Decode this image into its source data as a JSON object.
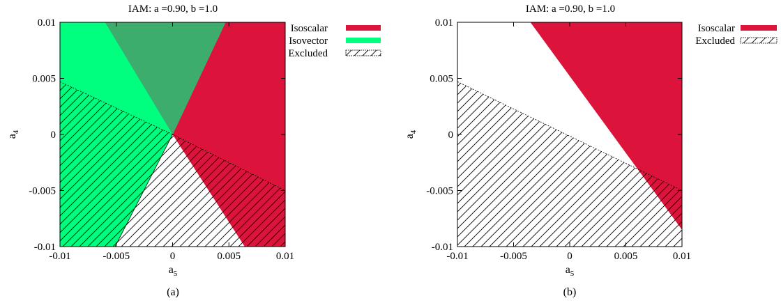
{
  "colors": {
    "isoscalar": "#dc143c",
    "isovector": "#00ff7f",
    "overlap": "#3cad6c",
    "hatch": "#000000"
  },
  "chart_data": [
    {
      "type": "area",
      "panel": "a",
      "caption": "(a)",
      "title": "IAM: a =0.90, b =1.0",
      "xlabel": "a",
      "xlabel_sub": "5",
      "ylabel": "a",
      "ylabel_sub": "4",
      "xlim": [
        -0.01,
        0.01
      ],
      "ylim": [
        -0.01,
        0.01
      ],
      "xticks": [
        "-0.01",
        "-0.005",
        "0",
        "0.005",
        "0.01"
      ],
      "yticks": [
        "-0.01",
        "-0.005",
        "0",
        "0.005",
        "0.01"
      ],
      "grid": false,
      "legend_position": "outside-right",
      "legend": [
        "Isoscalar",
        "Isovector",
        "Excluded"
      ],
      "series": [
        {
          "name": "Isoscalar",
          "color_key": "isoscalar",
          "fill": "solid",
          "polygon": [
            [
              0.0047,
              0.01
            ],
            [
              0.01,
              0.01
            ],
            [
              0.01,
              -0.01
            ],
            [
              0.0064,
              -0.01
            ],
            [
              0.0,
              0.0
            ]
          ]
        },
        {
          "name": "Isovector",
          "color_key": "isovector",
          "fill": "solid",
          "polygon": [
            [
              -0.01,
              0.01
            ],
            [
              0.0047,
              0.01
            ],
            [
              0.0,
              0.0
            ],
            [
              -0.0051,
              -0.01
            ],
            [
              -0.01,
              -0.01
            ]
          ]
        },
        {
          "color_key": "overlap",
          "fill": "solid",
          "polygon": [
            [
              -0.006,
              0.01
            ],
            [
              0.0047,
              0.01
            ],
            [
              0.0,
              0.0
            ]
          ]
        },
        {
          "name": "Excluded",
          "color_key": "hatch",
          "fill": "hatch",
          "polygon": [
            [
              -0.01,
              0.0047
            ],
            [
              0.0,
              0.0
            ],
            [
              -0.0051,
              -0.01
            ],
            [
              -0.01,
              -0.01
            ]
          ]
        },
        {
          "name": "Excluded",
          "color_key": "hatch",
          "fill": "hatch",
          "polygon": [
            [
              0.0,
              0.0
            ],
            [
              0.01,
              -0.005
            ],
            [
              0.01,
              -0.01
            ],
            [
              -0.0051,
              -0.01
            ]
          ]
        }
      ]
    },
    {
      "type": "area",
      "panel": "b",
      "caption": "(b)",
      "title": "IAM: a =0.90, b =1.0",
      "xlabel": "a",
      "xlabel_sub": "5",
      "ylabel": "a",
      "ylabel_sub": "4",
      "xlim": [
        -0.01,
        0.01
      ],
      "ylim": [
        -0.01,
        0.01
      ],
      "xticks": [
        "-0.01",
        "-0.005",
        "0",
        "0.005",
        "0.01"
      ],
      "yticks": [
        "-0.01",
        "-0.005",
        "0",
        "0.005",
        "0.01"
      ],
      "grid": false,
      "legend_position": "outside-right",
      "legend": [
        "Isoscalar",
        "Excluded"
      ],
      "series": [
        {
          "name": "Isoscalar",
          "color_key": "isoscalar",
          "fill": "solid",
          "polygon": [
            [
              -0.0035,
              0.01
            ],
            [
              0.01,
              0.01
            ],
            [
              0.01,
              -0.0085
            ]
          ]
        },
        {
          "name": "Excluded",
          "color_key": "hatch",
          "fill": "hatch",
          "polygon": [
            [
              -0.01,
              0.0047
            ],
            [
              0.01,
              -0.005
            ],
            [
              0.01,
              -0.01
            ],
            [
              -0.01,
              -0.01
            ]
          ]
        }
      ]
    }
  ]
}
